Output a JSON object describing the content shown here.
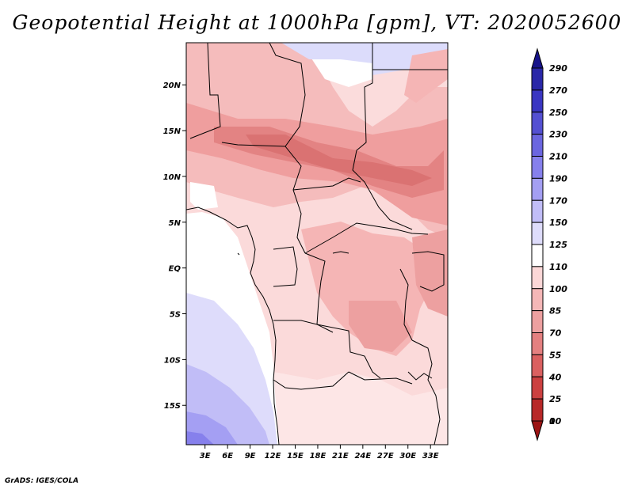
{
  "title": "Geopotential Height at 1000hPa [gpm], VT: 2020052600",
  "footer": "GrADS: IGES/COLA",
  "map": {
    "lat_labels": [
      "20N",
      "15N",
      "10N",
      "5N",
      "EQ",
      "5S",
      "10S",
      "15S"
    ],
    "lon_labels": [
      "3E",
      "6E",
      "9E",
      "12E",
      "15E",
      "18E",
      "21E",
      "24E",
      "27E",
      "30E",
      "33E"
    ],
    "lat_values": [
      20,
      15,
      10,
      5,
      0,
      -5,
      -10,
      -15
    ],
    "lon_values": [
      3,
      6,
      9,
      12,
      15,
      18,
      21,
      24,
      27,
      30,
      33
    ],
    "lat_range": [
      -19.3,
      24.6
    ],
    "lon_range": [
      0.5,
      35.3
    ]
  },
  "colorbar": {
    "labels": [
      "290",
      "270",
      "250",
      "230",
      "210",
      "190",
      "170",
      "150",
      "125",
      "110",
      "100",
      "85",
      "70",
      "55",
      "40",
      "25",
      "10",
      "0"
    ],
    "colors": [
      "#17138a",
      "#2a27a8",
      "#3a36c2",
      "#5450d2",
      "#6b66e0",
      "#8680ec",
      "#a49ff3",
      "#c1bdf7",
      "#dedcfb",
      "#ffffff",
      "#fbd7d7",
      "#f5b7b7",
      "#eda0a0",
      "#e48080",
      "#da6060",
      "#cc4040",
      "#b82828",
      "#9c1414"
    ]
  }
}
